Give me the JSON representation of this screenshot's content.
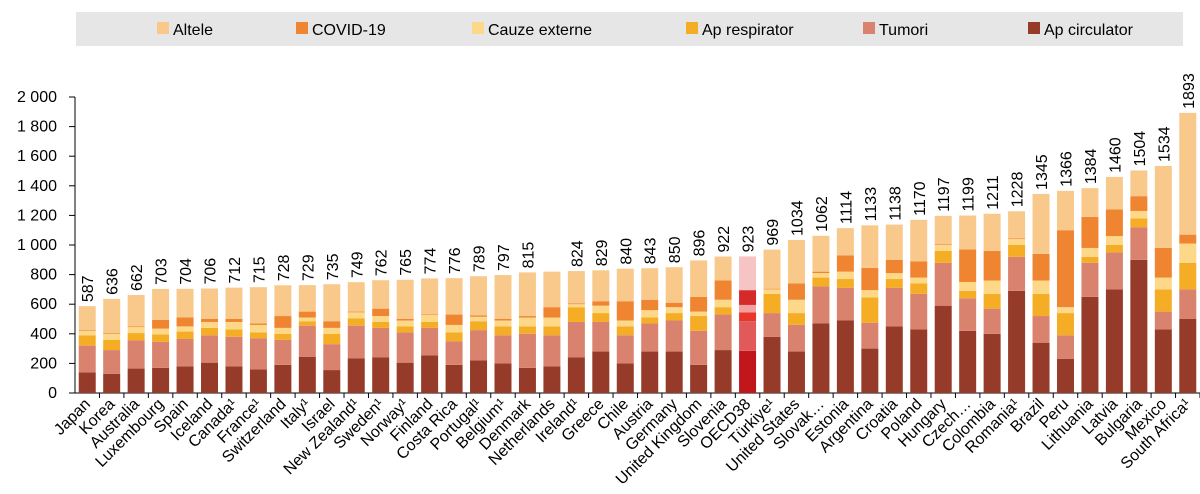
{
  "chart_data": {
    "type": "stacked-bar",
    "categories": [
      "Japan",
      "Korea",
      "Australia",
      "Luxembourg",
      "Spain",
      "Iceland",
      "Canada¹",
      "France¹",
      "Switzerland",
      "Italy¹",
      "Israel",
      "New Zealand¹",
      "Sweden¹",
      "Norway¹",
      "Finland",
      "Costa Rica",
      "Portugal¹",
      "Belgium¹",
      "Denmark",
      "Netherlands",
      "Ireland¹",
      "Greece",
      "Chile",
      "Austria",
      "Germany",
      "United Kingdom",
      "Slovenia",
      "OECD38",
      "Türkiye¹",
      "United States",
      "Slovak…",
      "Estonia",
      "Argentina",
      "Croatia",
      "Poland",
      "Hungary",
      "Czech…",
      "Colombia",
      "Romania¹",
      "Brazil",
      "Peru",
      "Lithuania",
      "Latvia",
      "Bulgaria",
      "Mexico",
      "South Africa¹"
    ],
    "series": [
      {
        "name": "Ap circulator",
        "color": "#963b29",
        "values": [
          140,
          130,
          165,
          170,
          180,
          205,
          180,
          160,
          190,
          245,
          155,
          235,
          240,
          205,
          255,
          190,
          220,
          200,
          170,
          180,
          240,
          280,
          200,
          280,
          280,
          190,
          290,
          285,
          380,
          280,
          470,
          490,
          300,
          450,
          430,
          590,
          420,
          400,
          690,
          340,
          230,
          650,
          700,
          900,
          430,
          500
        ]
      },
      {
        "name": "Tumori",
        "color": "#d9826e",
        "values": [
          180,
          160,
          190,
          175,
          185,
          185,
          200,
          210,
          170,
          210,
          175,
          220,
          200,
          205,
          185,
          160,
          205,
          190,
          230,
          210,
          240,
          200,
          190,
          190,
          210,
          230,
          240,
          200,
          160,
          180,
          250,
          220,
          175,
          260,
          240,
          290,
          220,
          170,
          230,
          180,
          160,
          230,
          250,
          220,
          120,
          200
        ]
      },
      {
        "name": "Ap respirator",
        "color": "#f5ad26",
        "values": [
          70,
          70,
          50,
          50,
          50,
          50,
          50,
          40,
          40,
          30,
          70,
          50,
          40,
          40,
          40,
          60,
          60,
          60,
          50,
          60,
          100,
          60,
          60,
          40,
          50,
          100,
          50,
          60,
          130,
          80,
          60,
          60,
          170,
          60,
          70,
          80,
          50,
          100,
          80,
          150,
          150,
          40,
          50,
          60,
          150,
          180
        ]
      },
      {
        "name": "Cauze externe",
        "color": "#fdd889",
        "values": [
          30,
          40,
          40,
          40,
          35,
          40,
          50,
          50,
          40,
          25,
          40,
          40,
          40,
          40,
          50,
          50,
          30,
          40,
          60,
          60,
          20,
          50,
          40,
          50,
          40,
          30,
          50,
          50,
          30,
          90,
          30,
          50,
          50,
          40,
          40,
          40,
          60,
          90,
          40,
          90,
          40,
          60,
          60,
          50,
          80,
          130
        ]
      },
      {
        "name": "COVID-19",
        "color": "#ef8530",
        "values": [
          5,
          5,
          5,
          60,
          60,
          20,
          20,
          10,
          80,
          40,
          45,
          5,
          50,
          10,
          5,
          70,
          10,
          10,
          10,
          70,
          5,
          30,
          130,
          70,
          30,
          100,
          130,
          100,
          5,
          110,
          10,
          110,
          150,
          90,
          110,
          5,
          220,
          200,
          5,
          180,
          520,
          210,
          180,
          100,
          200,
          60
        ]
      },
      {
        "name": "Altele",
        "color": "#f9c98c",
        "values": [
          162,
          231,
          212,
          208,
          194,
          206,
          212,
          245,
          208,
          179,
          250,
          199,
          192,
          265,
          239,
          246,
          264,
          297,
          295,
          240,
          219,
          209,
          220,
          213,
          240,
          246,
          162,
          228,
          264,
          294,
          242,
          184,
          288,
          238,
          280,
          192,
          229,
          251,
          183,
          405,
          266,
          194,
          220,
          174,
          554,
          823
        ]
      }
    ],
    "totals": [
      587,
      636,
      662,
      703,
      704,
      706,
      712,
      715,
      728,
      729,
      735,
      749,
      762,
      765,
      774,
      776,
      789,
      797,
      815,
      null,
      824,
      829,
      840,
      843,
      850,
      896,
      922,
      923,
      969,
      1034,
      1062,
      1114,
      1133,
      1138,
      1170,
      1197,
      1199,
      1211,
      1228,
      1345,
      1366,
      1384,
      1460,
      1504,
      1534,
      1893
    ],
    "highlight": "OECD38",
    "highlight_colors": [
      "#c0161c",
      "#e05a5a",
      "#e8362a",
      "#f2a0a0",
      "#d42a2a",
      "#f7c4c4"
    ],
    "ylim": [
      0,
      2000
    ],
    "yticks": [
      0,
      {
        "value": 200,
        "label": "200"
      },
      {
        "value": 400,
        "label": "400"
      },
      {
        "value": 600,
        "label": "600"
      },
      {
        "value": 800,
        "label": "800"
      },
      {
        "value": 1000,
        "label": "1 000"
      },
      {
        "value": 1200,
        "label": "1 200"
      },
      {
        "value": 1400,
        "label": "1 400"
      },
      {
        "value": 1600,
        "label": "1 600"
      },
      {
        "value": 1800,
        "label": "1 800"
      },
      {
        "value": 2000,
        "label": "2 000"
      }
    ],
    "legend": "top"
  }
}
